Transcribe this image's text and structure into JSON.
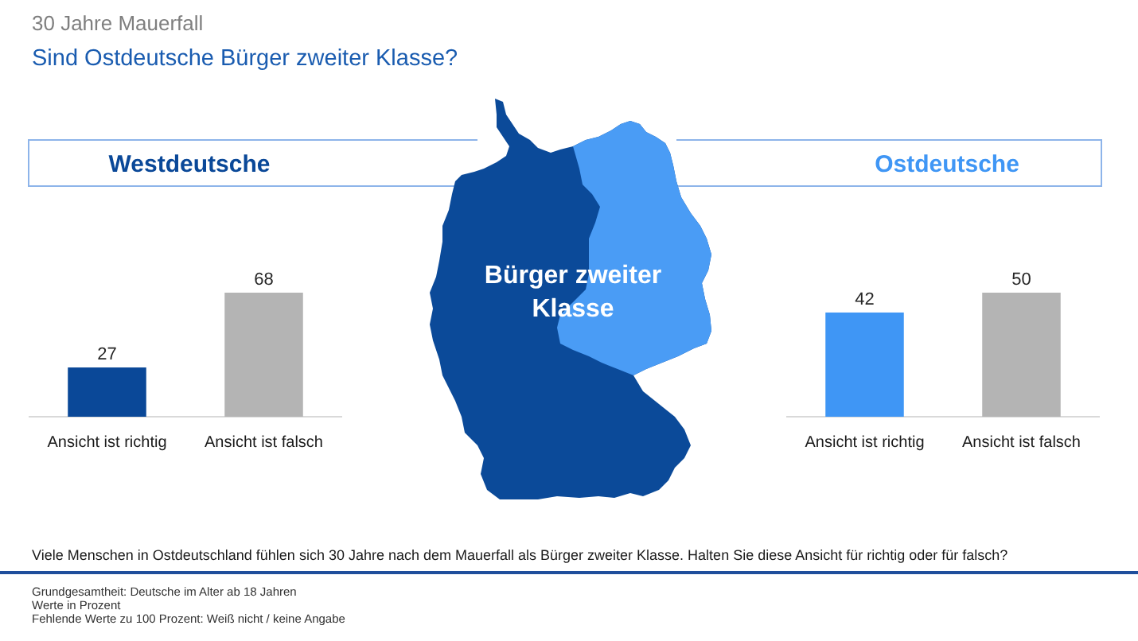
{
  "chart_data": [
    {
      "type": "other",
      "title": "30 Jahre Mauerfall",
      "subtitle": "Sind Ostdeutsche Bürger zweiter Klasse?",
      "annotations": [
        "Bürger zweiter Klasse",
        "Viele Menschen in Ostdeutschland fühlen sich 30 Jahre nach dem Mauerfall als Bürger zweiter Klasse. Halten Sie diese Ansicht für richtig oder für falsch?",
        "Grundgesamtheit: Deutsche im Alter ab 18 Jahren",
        "Werte in Prozent",
        "Fehlende Werte zu 100 Prozent: Weiß nicht / keine Angabe"
      ]
    },
    {
      "type": "bar",
      "title": "Westdeutsche",
      "categories": [
        "Ansicht ist richtig",
        "Ansicht ist falsch"
      ],
      "values": [
        27,
        68
      ],
      "colors": [
        "#0a4898",
        "#b4b4b4"
      ],
      "data_labels": true
    },
    {
      "type": "bar",
      "title": "Ostdeutsche",
      "categories": [
        "Ansicht ist richtig",
        "Ansicht ist falsch"
      ],
      "values": [
        42,
        50
      ],
      "colors": [
        "#3f96f5",
        "#b4b4b4"
      ],
      "data_labels": true
    }
  ]
}
